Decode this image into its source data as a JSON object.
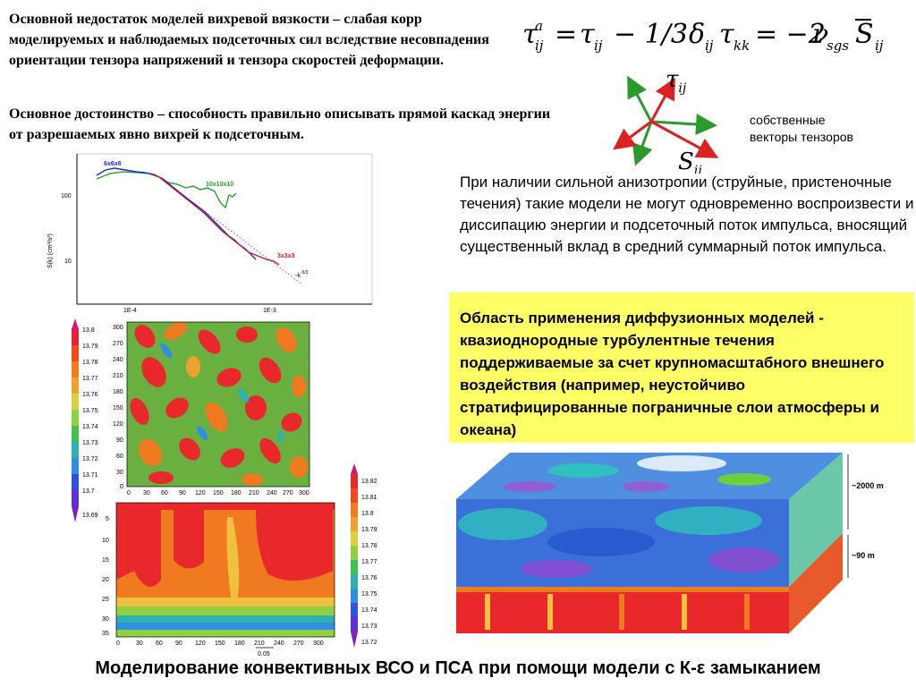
{
  "text_left_top": {
    "para1": "Основной недостаток моделей вихревой вязкости – слабая корр моделируемых и наблюдаемых  подсеточных сил вследствие несовпадения ориентации тензора напряжений и тензора скоростей деформации.",
    "para2": "Основное достоинство – способность правильно описывать прямой каскад энергии от разрешаемых явно вихрей к подсеточным."
  },
  "formula": {
    "text": "τ^a_ij = τ_ij − 1/3δ_ij τ_kk = −2ν_sgs S̄_ij"
  },
  "tensor_diagram": {
    "tau_label": "τ",
    "tau_sub": "ij",
    "s_label": "S",
    "s_sub": "ij",
    "caption_line1": "собственные",
    "caption_line2": "векторы тензоров",
    "colors": {
      "tau": "#2a9a2a",
      "s": "#dd2020"
    }
  },
  "anisotropy_text": "При наличии сильной анизотропии (струйные, пристеночные течения) такие модели не могут одновременно воспроизвести и диссипацию энергии и подсеточный поток импульса, вносящий существенный вклад в средний суммарный поток импульса.",
  "yellow_box": {
    "text": "Область применения диффузионных моделей - квазиоднородные  турбулентные течения поддерживаемые за счет крупномасштабного внешнего воздействия (например, неустойчиво стратифицированные пограничные слои атмосферы и океана)",
    "color": "#ffff66"
  },
  "spectrum_chart": {
    "ylabel": "S(k) (cm³/s²)",
    "ytick_100": "100",
    "ytick_10": "10",
    "xtick_1": "1E-4",
    "xtick_2": "1E-3",
    "label_6": "6x6x6",
    "label_10": "10x10x10",
    "label_3": "3x3x3",
    "slope_label": "-k",
    "slope_exp": "-5/3",
    "colors": {
      "6x6x6": "#1a2ad0",
      "10x10x10": "#1f9a1f",
      "3x3x3": "#c02020"
    }
  },
  "contour_top": {
    "colorbar": [
      "13.8",
      "13.79",
      "13.78",
      "13.77",
      "13.76",
      "13.75",
      "13.74",
      "13.73",
      "13.72",
      "13.71",
      "13.7",
      "13.69"
    ],
    "yticks": [
      "300",
      "270",
      "240",
      "210",
      "180",
      "150",
      "120",
      "90",
      "60",
      "30",
      "0"
    ],
    "xticks": [
      "0",
      "30",
      "60",
      "90",
      "120",
      "150",
      "180",
      "210",
      "240",
      "270",
      "300"
    ]
  },
  "contour_bottom": {
    "colorbar": [
      "13.82",
      "13.81",
      "13.8",
      "13.79",
      "13.78",
      "13.77",
      "13.76",
      "13.75",
      "13.74",
      "13.73",
      "13.72"
    ],
    "yticks": [
      "5",
      "10",
      "15",
      "20",
      "25",
      "30",
      "35"
    ],
    "xticks": [
      "0",
      "30",
      "60",
      "90",
      "120",
      "150",
      "180",
      "210",
      "240",
      "270",
      "300"
    ],
    "vector_label": "0.05"
  },
  "cube": {
    "label_top": "2000 m",
    "label_bottom": "90 m"
  },
  "bottom_title": "Моделирование конвективных ВСО и ПСА при помощи модели с К-ε замыканием"
}
